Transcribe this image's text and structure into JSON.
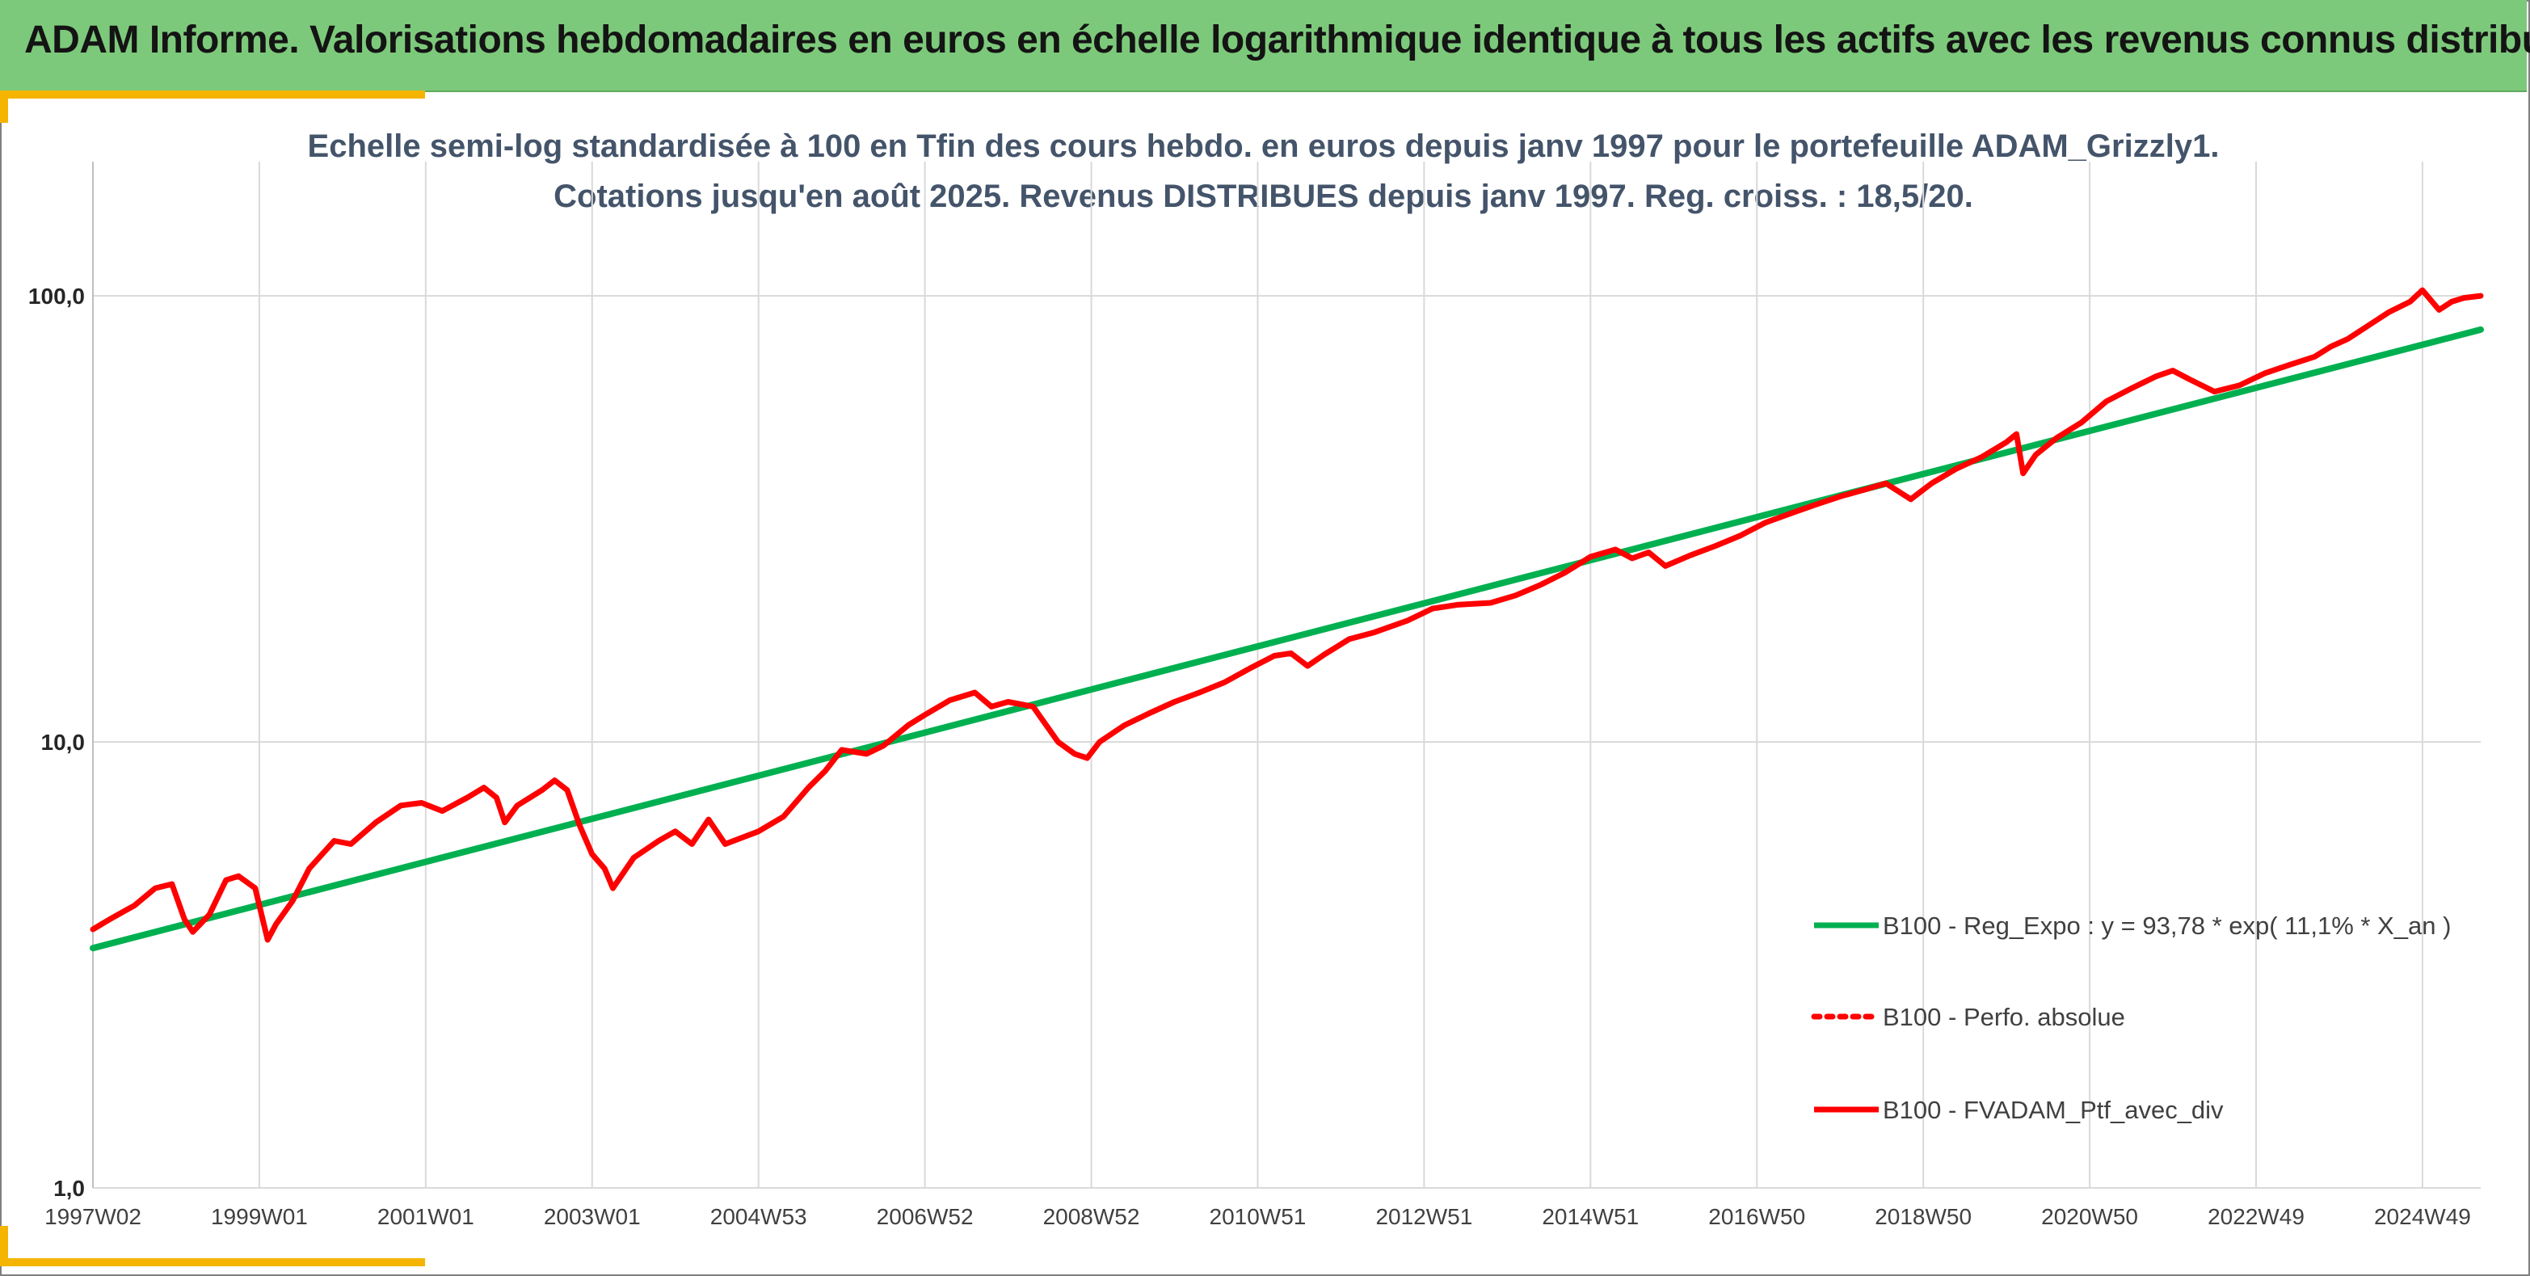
{
  "header": {
    "title": "ADAM Informe. Valorisations hebdomadaires en euros en échelle logarithmique identique à tous les actifs avec les revenus connus distribués",
    "banner_color": "#7dc97b",
    "accent_color": "#f4b400"
  },
  "chart_data": {
    "type": "line",
    "title_lines": [
      "Echelle semi-log standardisée à 100 en Tfin des cours hebdo. en euros depuis janv 1997 pour le portefeuille ADAM_Grizzly1.",
      "Cotations jusqu'en août 2025. Revenus DISTRIBUES depuis janv 1997. Reg. croiss. : 18,5/20."
    ],
    "y_scale": "log",
    "ylim": [
      1,
      200
    ],
    "y_ticks": [
      {
        "value": 1,
        "label": "1,0"
      },
      {
        "value": 10,
        "label": "10,0"
      },
      {
        "value": 100,
        "label": "100,0"
      }
    ],
    "xlim": [
      1997.0,
      2025.7
    ],
    "x_ticks": [
      {
        "value": 1997.0,
        "label": "1997W02"
      },
      {
        "value": 1999.0,
        "label": "1999W01"
      },
      {
        "value": 2001.0,
        "label": "2001W01"
      },
      {
        "value": 2003.0,
        "label": "2003W01"
      },
      {
        "value": 2005.0,
        "label": "2004W53"
      },
      {
        "value": 2007.0,
        "label": "2006W52"
      },
      {
        "value": 2009.0,
        "label": "2008W52"
      },
      {
        "value": 2011.0,
        "label": "2010W51"
      },
      {
        "value": 2013.0,
        "label": "2012W51"
      },
      {
        "value": 2015.0,
        "label": "2014W51"
      },
      {
        "value": 2017.0,
        "label": "2016W50"
      },
      {
        "value": 2019.0,
        "label": "2018W50"
      },
      {
        "value": 2021.0,
        "label": "2020W50"
      },
      {
        "value": 2023.0,
        "label": "2022W49"
      },
      {
        "value": 2025.0,
        "label": "2024W49"
      }
    ],
    "grid": true,
    "legend_position": "right",
    "series": [
      {
        "name": "B100 - Reg_Expo : y = 93,78 * exp( 11,1% *  X_an )",
        "style": "solid",
        "color": "#00b050",
        "points": [
          [
            1997.0,
            3.45
          ],
          [
            2025.7,
            84.0
          ]
        ]
      },
      {
        "name": "B100 - Perfo. absolue",
        "style": "dotted",
        "color": "#ff0000",
        "points": []
      },
      {
        "name": "B100 - FVADAM_Ptf_avec_div",
        "style": "solid",
        "color": "#ff0000",
        "points": [
          [
            1997.0,
            3.8
          ],
          [
            1997.2,
            4.0
          ],
          [
            1997.5,
            4.3
          ],
          [
            1997.75,
            4.7
          ],
          [
            1997.95,
            4.8
          ],
          [
            1998.1,
            4.0
          ],
          [
            1998.2,
            3.75
          ],
          [
            1998.4,
            4.1
          ],
          [
            1998.6,
            4.9
          ],
          [
            1998.75,
            5.0
          ],
          [
            1998.95,
            4.7
          ],
          [
            1999.1,
            3.6
          ],
          [
            1999.2,
            3.9
          ],
          [
            1999.4,
            4.4
          ],
          [
            1999.6,
            5.2
          ],
          [
            1999.9,
            6.0
          ],
          [
            2000.1,
            5.9
          ],
          [
            2000.4,
            6.6
          ],
          [
            2000.7,
            7.2
          ],
          [
            2000.95,
            7.3
          ],
          [
            2001.2,
            7.0
          ],
          [
            2001.5,
            7.5
          ],
          [
            2001.7,
            7.9
          ],
          [
            2001.85,
            7.5
          ],
          [
            2001.95,
            6.6
          ],
          [
            2002.1,
            7.2
          ],
          [
            2002.4,
            7.8
          ],
          [
            2002.55,
            8.2
          ],
          [
            2002.7,
            7.8
          ],
          [
            2002.85,
            6.5
          ],
          [
            2003.0,
            5.6
          ],
          [
            2003.15,
            5.2
          ],
          [
            2003.25,
            4.7
          ],
          [
            2003.5,
            5.5
          ],
          [
            2003.8,
            6.0
          ],
          [
            2004.0,
            6.3
          ],
          [
            2004.2,
            5.9
          ],
          [
            2004.4,
            6.7
          ],
          [
            2004.6,
            5.9
          ],
          [
            2004.8,
            6.1
          ],
          [
            2005.0,
            6.3
          ],
          [
            2005.3,
            6.8
          ],
          [
            2005.6,
            7.9
          ],
          [
            2005.8,
            8.6
          ],
          [
            2006.0,
            9.6
          ],
          [
            2006.3,
            9.4
          ],
          [
            2006.5,
            9.8
          ],
          [
            2006.8,
            10.9
          ],
          [
            2007.0,
            11.5
          ],
          [
            2007.3,
            12.4
          ],
          [
            2007.6,
            12.9
          ],
          [
            2007.8,
            12.0
          ],
          [
            2008.0,
            12.3
          ],
          [
            2008.3,
            12.0
          ],
          [
            2008.6,
            10.0
          ],
          [
            2008.8,
            9.4
          ],
          [
            2008.95,
            9.2
          ],
          [
            2009.1,
            10.0
          ],
          [
            2009.4,
            10.9
          ],
          [
            2009.7,
            11.6
          ],
          [
            2010.0,
            12.3
          ],
          [
            2010.3,
            12.9
          ],
          [
            2010.6,
            13.6
          ],
          [
            2010.9,
            14.6
          ],
          [
            2011.2,
            15.6
          ],
          [
            2011.4,
            15.8
          ],
          [
            2011.6,
            14.8
          ],
          [
            2011.8,
            15.7
          ],
          [
            2012.1,
            17.0
          ],
          [
            2012.4,
            17.6
          ],
          [
            2012.8,
            18.7
          ],
          [
            2013.1,
            19.9
          ],
          [
            2013.4,
            20.3
          ],
          [
            2013.8,
            20.5
          ],
          [
            2014.1,
            21.3
          ],
          [
            2014.4,
            22.5
          ],
          [
            2014.7,
            24.0
          ],
          [
            2015.0,
            26.0
          ],
          [
            2015.3,
            27.0
          ],
          [
            2015.5,
            25.8
          ],
          [
            2015.7,
            26.6
          ],
          [
            2015.9,
            24.8
          ],
          [
            2016.2,
            26.2
          ],
          [
            2016.5,
            27.5
          ],
          [
            2016.8,
            29.0
          ],
          [
            2017.1,
            31.0
          ],
          [
            2017.4,
            32.5
          ],
          [
            2017.7,
            34.0
          ],
          [
            2018.0,
            35.5
          ],
          [
            2018.3,
            36.8
          ],
          [
            2018.55,
            38.0
          ],
          [
            2018.85,
            35.0
          ],
          [
            2019.1,
            38.0
          ],
          [
            2019.4,
            41.0
          ],
          [
            2019.7,
            43.5
          ],
          [
            2020.0,
            47.0
          ],
          [
            2020.12,
            49.0
          ],
          [
            2020.2,
            40.0
          ],
          [
            2020.35,
            44.0
          ],
          [
            2020.6,
            48.0
          ],
          [
            2020.9,
            52.0
          ],
          [
            2021.2,
            58.0
          ],
          [
            2021.5,
            62.0
          ],
          [
            2021.8,
            66.0
          ],
          [
            2022.0,
            68.0
          ],
          [
            2022.2,
            65.0
          ],
          [
            2022.5,
            61.0
          ],
          [
            2022.8,
            63.0
          ],
          [
            2023.1,
            67.0
          ],
          [
            2023.4,
            70.0
          ],
          [
            2023.7,
            73.0
          ],
          [
            2023.9,
            77.0
          ],
          [
            2024.1,
            80.0
          ],
          [
            2024.4,
            87.0
          ],
          [
            2024.6,
            92.0
          ],
          [
            2024.85,
            97.0
          ],
          [
            2025.0,
            103.0
          ],
          [
            2025.2,
            93.0
          ],
          [
            2025.35,
            97.0
          ],
          [
            2025.5,
            99.0
          ],
          [
            2025.7,
            100.0
          ]
        ]
      }
    ]
  }
}
